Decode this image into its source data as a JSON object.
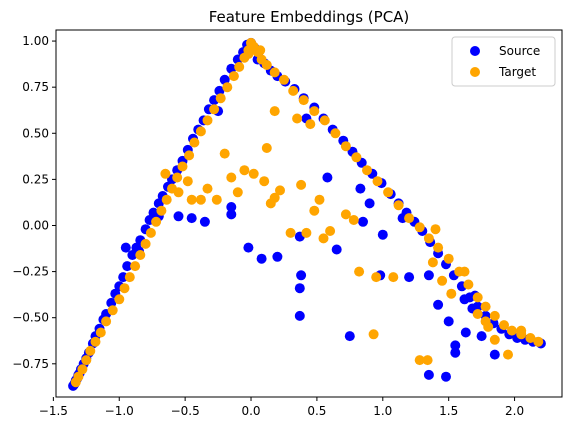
{
  "chart_data": {
    "type": "scatter",
    "title": "Feature Embeddings (PCA)",
    "xlabel": "",
    "ylabel": "",
    "xlim": [
      -1.48,
      2.36
    ],
    "ylim": [
      -0.93,
      1.06
    ],
    "xticks": [
      -1.5,
      -1.0,
      -0.5,
      0.0,
      0.5,
      1.0,
      1.5,
      2.0
    ],
    "xtick_labels": [
      "−1.5",
      "−1.0",
      "−0.5",
      "0.0",
      "0.5",
      "1.0",
      "1.5",
      "2.0"
    ],
    "yticks": [
      -0.75,
      -0.5,
      -0.25,
      0.0,
      0.25,
      0.5,
      0.75,
      1.0
    ],
    "ytick_labels": [
      "−0.75",
      "−0.50",
      "−0.25",
      "0.00",
      "0.25",
      "0.50",
      "0.75",
      "1.00"
    ],
    "grid": false,
    "legend": {
      "position": "upper right"
    },
    "series": [
      {
        "name": "Source",
        "color": "#0000ff",
        "points": [
          [
            -1.35,
            -0.87
          ],
          [
            -1.34,
            -0.86
          ],
          [
            -1.33,
            -0.84
          ],
          [
            -1.32,
            -0.83
          ],
          [
            -1.31,
            -0.81
          ],
          [
            -1.3,
            -0.8
          ],
          [
            -1.29,
            -0.78
          ],
          [
            -1.27,
            -0.75
          ],
          [
            -1.25,
            -0.72
          ],
          [
            -1.23,
            -0.69
          ],
          [
            -1.2,
            -0.64
          ],
          [
            -1.18,
            -0.6
          ],
          [
            -1.15,
            -0.56
          ],
          [
            -1.12,
            -0.51
          ],
          [
            -1.1,
            -0.48
          ],
          [
            -1.06,
            -0.42
          ],
          [
            -1.03,
            -0.37
          ],
          [
            -1.0,
            -0.33
          ],
          [
            -0.97,
            -0.28
          ],
          [
            -0.94,
            -0.22
          ],
          [
            -0.9,
            -0.16
          ],
          [
            -0.87,
            -0.12
          ],
          [
            -0.84,
            -0.08
          ],
          [
            -0.8,
            -0.02
          ],
          [
            -0.77,
            0.03
          ],
          [
            -0.74,
            0.07
          ],
          [
            -0.7,
            0.12
          ],
          [
            -0.67,
            0.16
          ],
          [
            -0.63,
            0.21
          ],
          [
            -0.6,
            0.25
          ],
          [
            -0.56,
            0.3
          ],
          [
            -0.52,
            0.35
          ],
          [
            -0.48,
            0.41
          ],
          [
            -0.44,
            0.47
          ],
          [
            -0.4,
            0.52
          ],
          [
            -0.36,
            0.57
          ],
          [
            -0.32,
            0.63
          ],
          [
            -0.28,
            0.68
          ],
          [
            -0.24,
            0.73
          ],
          [
            -0.2,
            0.79
          ],
          [
            -0.15,
            0.85
          ],
          [
            -0.1,
            0.9
          ],
          [
            -0.06,
            0.94
          ],
          [
            -0.03,
            0.98
          ],
          [
            0.0,
            0.99
          ],
          [
            0.03,
            0.96
          ],
          [
            0.06,
            0.91
          ],
          [
            0.1,
            0.88
          ],
          [
            0.15,
            0.84
          ],
          [
            0.2,
            0.81
          ],
          [
            0.26,
            0.78
          ],
          [
            0.33,
            0.74
          ],
          [
            0.4,
            0.69
          ],
          [
            0.48,
            0.64
          ],
          [
            0.55,
            0.58
          ],
          [
            0.62,
            0.52
          ],
          [
            0.7,
            0.46
          ],
          [
            0.77,
            0.4
          ],
          [
            0.84,
            0.34
          ],
          [
            0.92,
            0.28
          ],
          [
            0.99,
            0.23
          ],
          [
            1.06,
            0.17
          ],
          [
            1.12,
            0.12
          ],
          [
            1.18,
            0.07
          ],
          [
            1.24,
            0.02
          ],
          [
            1.3,
            -0.03
          ],
          [
            1.36,
            -0.09
          ],
          [
            1.42,
            -0.15
          ],
          [
            1.48,
            -0.21
          ],
          [
            1.54,
            -0.27
          ],
          [
            1.6,
            -0.33
          ],
          [
            1.66,
            -0.39
          ],
          [
            1.72,
            -0.44
          ],
          [
            1.78,
            -0.49
          ],
          [
            1.84,
            -0.53
          ],
          [
            1.9,
            -0.56
          ],
          [
            1.96,
            -0.59
          ],
          [
            2.02,
            -0.61
          ],
          [
            2.08,
            -0.62
          ],
          [
            2.14,
            -0.63
          ],
          [
            2.2,
            -0.64
          ],
          [
            -0.95,
            -0.12
          ],
          [
            -0.85,
            -0.14
          ],
          [
            -0.7,
            0.05
          ],
          [
            -0.55,
            0.05
          ],
          [
            -0.45,
            0.04
          ],
          [
            -0.35,
            0.02
          ],
          [
            -0.15,
            0.1
          ],
          [
            -0.15,
            0.06
          ],
          [
            -0.02,
            -0.12
          ],
          [
            0.08,
            -0.18
          ],
          [
            0.2,
            -0.17
          ],
          [
            0.37,
            -0.06
          ],
          [
            0.38,
            -0.27
          ],
          [
            0.37,
            -0.34
          ],
          [
            0.37,
            -0.49
          ],
          [
            0.58,
            0.26
          ],
          [
            0.65,
            -0.13
          ],
          [
            0.83,
            0.2
          ],
          [
            0.85,
            0.02
          ],
          [
            0.75,
            -0.6
          ],
          [
            0.98,
            -0.27
          ],
          [
            1.2,
            -0.28
          ],
          [
            1.35,
            -0.27
          ],
          [
            1.42,
            -0.43
          ],
          [
            1.5,
            -0.52
          ],
          [
            1.55,
            -0.65
          ],
          [
            1.55,
            -0.69
          ],
          [
            1.35,
            -0.81
          ],
          [
            1.48,
            -0.82
          ],
          [
            1.62,
            -0.4
          ],
          [
            1.68,
            -0.45
          ],
          [
            1.63,
            -0.58
          ],
          [
            1.75,
            -0.6
          ],
          [
            1.85,
            -0.7
          ],
          [
            1.15,
            0.04
          ],
          [
            1.0,
            -0.05
          ],
          [
            0.9,
            0.12
          ],
          [
            0.05,
            0.9
          ],
          [
            -0.25,
            0.62
          ],
          [
            0.42,
            0.58
          ],
          [
            1.7,
            -0.38
          ]
        ]
      },
      {
        "name": "Target",
        "color": "#ffa500",
        "points": [
          [
            -1.33,
            -0.85
          ],
          [
            -1.31,
            -0.82
          ],
          [
            -1.28,
            -0.78
          ],
          [
            -1.25,
            -0.73
          ],
          [
            -1.22,
            -0.68
          ],
          [
            -1.18,
            -0.63
          ],
          [
            -1.14,
            -0.58
          ],
          [
            -1.1,
            -0.52
          ],
          [
            -1.05,
            -0.46
          ],
          [
            -1.0,
            -0.4
          ],
          [
            -0.96,
            -0.34
          ],
          [
            -0.92,
            -0.28
          ],
          [
            -0.88,
            -0.22
          ],
          [
            -0.84,
            -0.16
          ],
          [
            -0.8,
            -0.1
          ],
          [
            -0.76,
            -0.04
          ],
          [
            -0.72,
            0.02
          ],
          [
            -0.68,
            0.08
          ],
          [
            -0.64,
            0.14
          ],
          [
            -0.6,
            0.2
          ],
          [
            -0.56,
            0.26
          ],
          [
            -0.52,
            0.32
          ],
          [
            -0.47,
            0.38
          ],
          [
            -0.43,
            0.45
          ],
          [
            -0.38,
            0.51
          ],
          [
            -0.33,
            0.57
          ],
          [
            -0.28,
            0.63
          ],
          [
            -0.23,
            0.69
          ],
          [
            -0.18,
            0.75
          ],
          [
            -0.13,
            0.81
          ],
          [
            -0.09,
            0.86
          ],
          [
            -0.05,
            0.91
          ],
          [
            -0.02,
            0.95
          ],
          [
            0.0,
            0.99
          ],
          [
            0.02,
            0.97
          ],
          [
            0.05,
            0.94
          ],
          [
            0.08,
            0.9
          ],
          [
            0.12,
            0.87
          ],
          [
            0.18,
            0.83
          ],
          [
            0.25,
            0.79
          ],
          [
            0.32,
            0.73
          ],
          [
            0.4,
            0.68
          ],
          [
            0.48,
            0.62
          ],
          [
            0.56,
            0.57
          ],
          [
            0.64,
            0.5
          ],
          [
            0.72,
            0.43
          ],
          [
            0.8,
            0.37
          ],
          [
            0.88,
            0.3
          ],
          [
            0.96,
            0.24
          ],
          [
            1.04,
            0.18
          ],
          [
            1.12,
            0.11
          ],
          [
            1.2,
            0.04
          ],
          [
            1.28,
            -0.01
          ],
          [
            1.35,
            -0.07
          ],
          [
            1.42,
            -0.12
          ],
          [
            1.5,
            -0.18
          ],
          [
            1.58,
            -0.25
          ],
          [
            1.65,
            -0.32
          ],
          [
            1.72,
            -0.39
          ],
          [
            1.78,
            -0.44
          ],
          [
            1.85,
            -0.49
          ],
          [
            1.92,
            -0.54
          ],
          [
            1.98,
            -0.57
          ],
          [
            2.05,
            -0.59
          ],
          [
            2.12,
            -0.61
          ],
          [
            2.18,
            -0.63
          ],
          [
            -0.65,
            0.28
          ],
          [
            -0.55,
            0.18
          ],
          [
            -0.48,
            0.24
          ],
          [
            -0.45,
            0.14
          ],
          [
            -0.38,
            0.14
          ],
          [
            -0.33,
            0.2
          ],
          [
            -0.26,
            0.14
          ],
          [
            -0.2,
            0.39
          ],
          [
            -0.15,
            0.26
          ],
          [
            -0.1,
            0.18
          ],
          [
            -0.05,
            0.3
          ],
          [
            0.02,
            0.28
          ],
          [
            0.1,
            0.24
          ],
          [
            0.18,
            0.15
          ],
          [
            0.22,
            0.19
          ],
          [
            0.3,
            -0.04
          ],
          [
            0.42,
            -0.04
          ],
          [
            0.48,
            0.08
          ],
          [
            0.52,
            0.14
          ],
          [
            0.38,
            0.22
          ],
          [
            0.55,
            -0.07
          ],
          [
            0.6,
            -0.03
          ],
          [
            0.72,
            0.06
          ],
          [
            0.78,
            0.03
          ],
          [
            0.82,
            -0.25
          ],
          [
            0.95,
            -0.28
          ],
          [
            0.93,
            -0.59
          ],
          [
            1.08,
            -0.28
          ],
          [
            1.28,
            -0.73
          ],
          [
            1.34,
            -0.73
          ],
          [
            1.38,
            -0.2
          ],
          [
            1.45,
            -0.3
          ],
          [
            1.52,
            -0.37
          ],
          [
            1.62,
            -0.25
          ],
          [
            1.8,
            -0.55
          ],
          [
            1.85,
            -0.62
          ],
          [
            1.95,
            -0.7
          ],
          [
            2.05,
            -0.57
          ],
          [
            0.15,
            0.12
          ],
          [
            0.12,
            0.42
          ],
          [
            0.18,
            0.62
          ],
          [
            -0.02,
            0.93
          ],
          [
            0.07,
            0.95
          ],
          [
            0.35,
            0.58
          ],
          [
            0.45,
            0.55
          ],
          [
            1.4,
            -0.02
          ],
          [
            1.72,
            -0.48
          ],
          [
            1.78,
            -0.52
          ]
        ]
      }
    ]
  }
}
